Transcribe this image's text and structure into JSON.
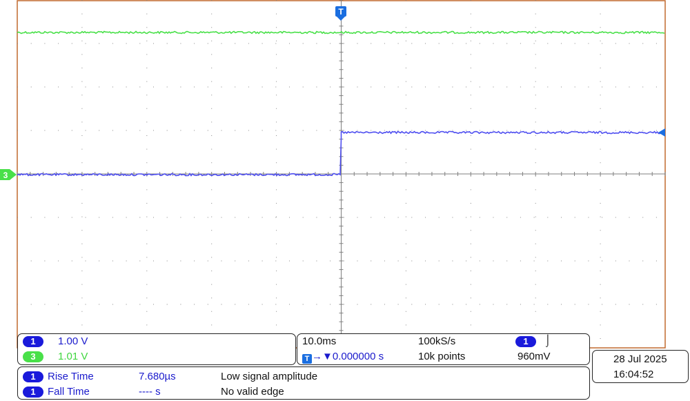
{
  "colors": {
    "grid_border": "#c0682d",
    "grid_line": "#888888",
    "ch1": "#4e4ef0",
    "ch3": "#49e049",
    "trigger": "#1a6ee0"
  },
  "markers": {
    "trigger_top": "T",
    "ch3_ground": "3"
  },
  "channels": [
    {
      "badge": "1",
      "value": "1.00 V"
    },
    {
      "badge": "3",
      "value": "1.01 V"
    }
  ],
  "horizontal": {
    "timebase": "10.0ms",
    "sample_rate": "100kS/s",
    "trigger_badge": "1",
    "trigger_symbol": "⌡",
    "position_arrow": "→▼",
    "position_value": "0.000000 s",
    "record_length": "10k points",
    "trigger_level": "960mV",
    "trigger_marker": "T"
  },
  "measurements": [
    {
      "badge": "1",
      "name": "Rise Time",
      "value": "7.680µs",
      "status": "Low signal amplitude"
    },
    {
      "badge": "1",
      "name": "Fall Time",
      "value": "---- s",
      "status": "No valid edge"
    }
  ],
  "datetime": {
    "date": "28 Jul  2025",
    "time": "16:04:52"
  }
}
